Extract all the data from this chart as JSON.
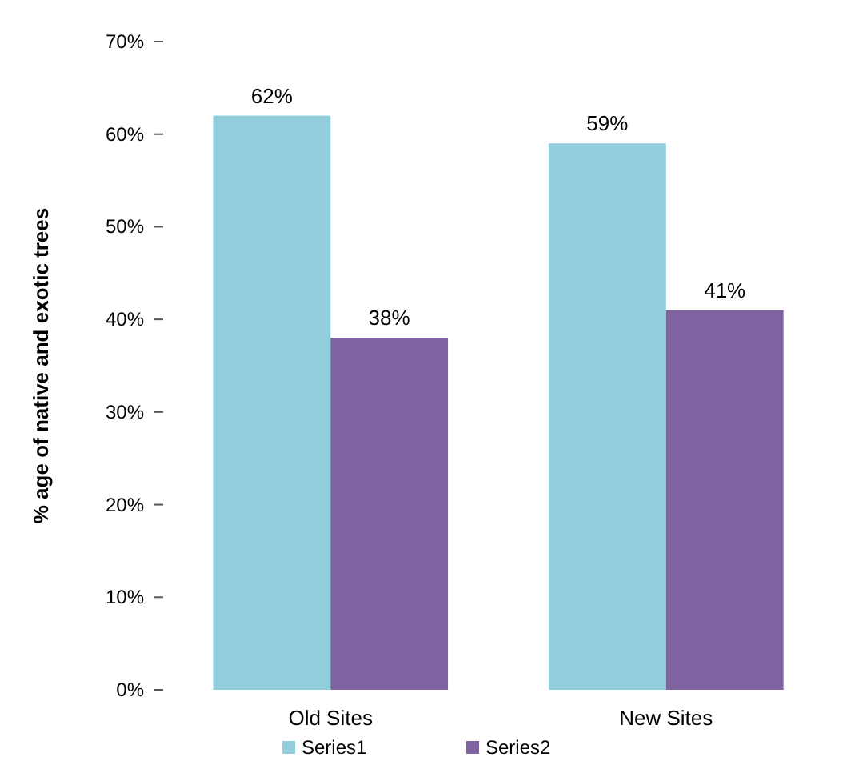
{
  "chart_data": {
    "type": "bar",
    "ylabel": "% age of native and exotic trees",
    "categories": [
      "Old Sites",
      "New Sites"
    ],
    "series": [
      {
        "name": "Series1",
        "color": "#92cddc",
        "values": [
          62,
          59
        ],
        "value_labels": [
          "62%",
          "59%"
        ]
      },
      {
        "name": "Series2",
        "color": "#8064a2",
        "values": [
          38,
          41
        ],
        "value_labels": [
          "38%",
          "41%"
        ]
      }
    ],
    "ylim": [
      0,
      70
    ],
    "yticks": [
      {
        "value": 0,
        "label": "0%"
      },
      {
        "value": 10,
        "label": "10%"
      },
      {
        "value": 20,
        "label": "20%"
      },
      {
        "value": 30,
        "label": "30%"
      },
      {
        "value": 40,
        "label": "40%"
      },
      {
        "value": 50,
        "label": "50%"
      },
      {
        "value": 60,
        "label": "60%"
      },
      {
        "value": 70,
        "label": "70%"
      }
    ],
    "grid": false,
    "legend": "bottom"
  }
}
